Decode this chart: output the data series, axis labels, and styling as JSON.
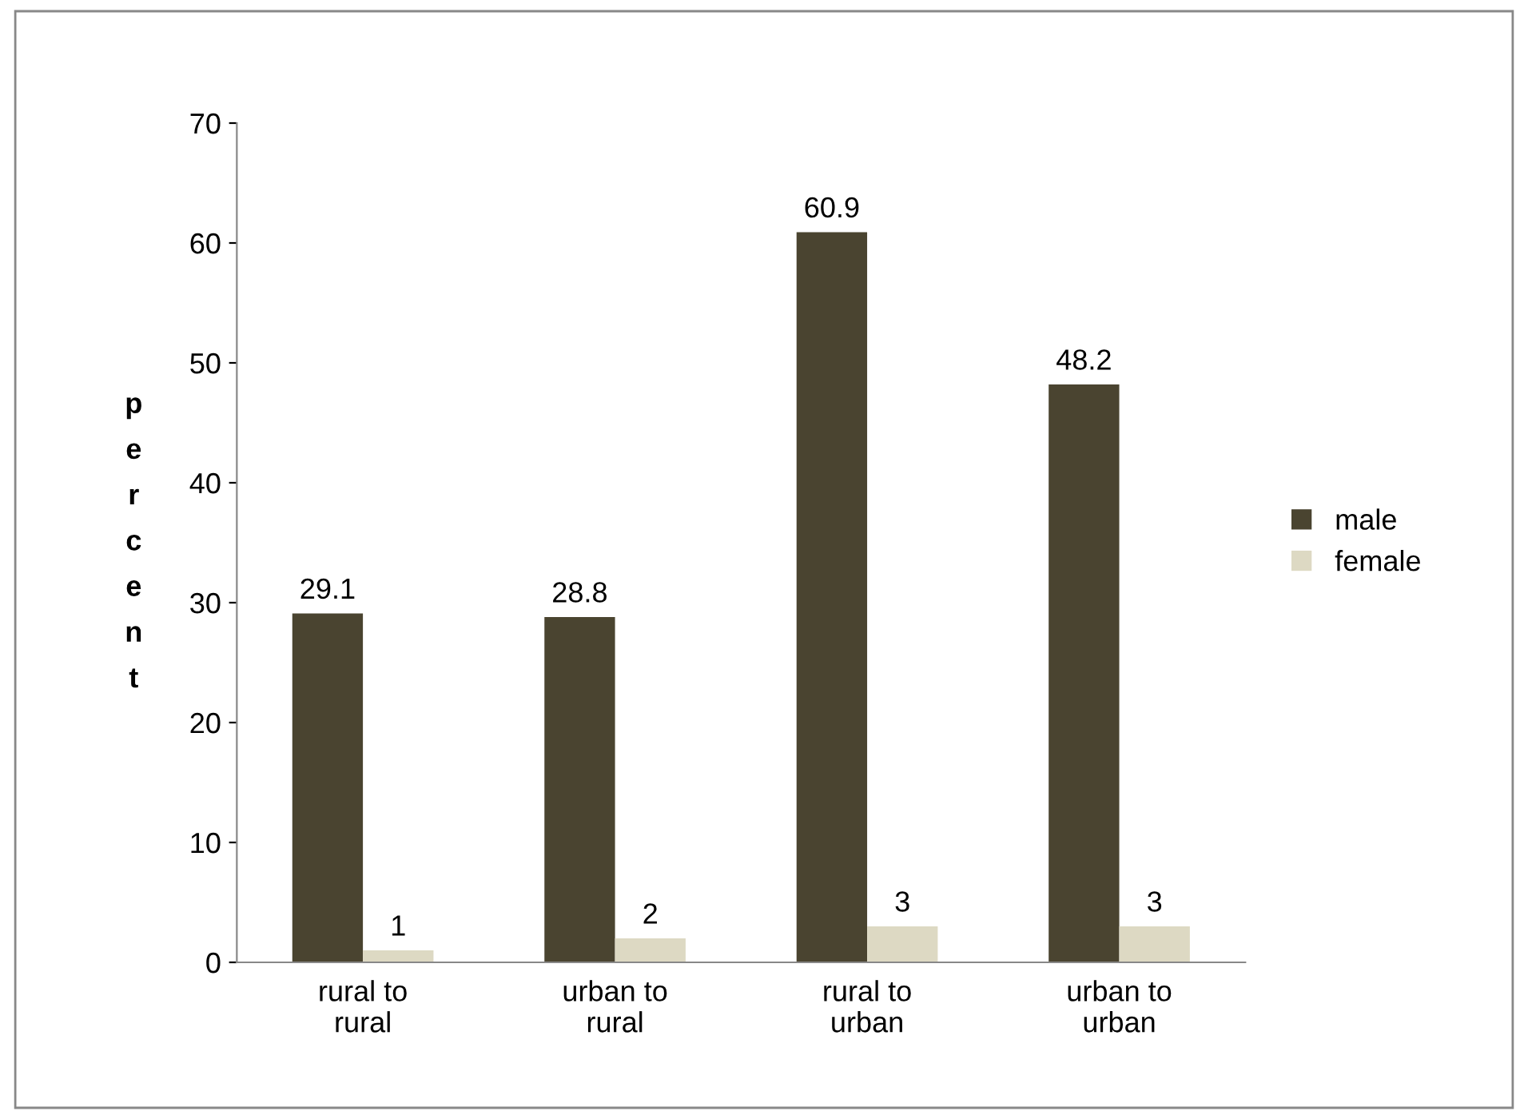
{
  "chart_data": {
    "type": "bar",
    "ylabel": "percent",
    "categories": [
      "rural to rural",
      "urban to rural",
      "rural to urban",
      "urban to urban"
    ],
    "series": [
      {
        "name": "male",
        "color": "#4a4430",
        "values": [
          29.1,
          28.8,
          60.9,
          48.2
        ]
      },
      {
        "name": "female",
        "color": "#ddd9c3",
        "values": [
          1,
          2,
          3,
          3
        ]
      }
    ],
    "ylim": [
      0,
      70
    ],
    "yticks": [
      0,
      10,
      20,
      30,
      40,
      50,
      60,
      70
    ],
    "data_labels": true,
    "legend": "right",
    "grid": false
  }
}
